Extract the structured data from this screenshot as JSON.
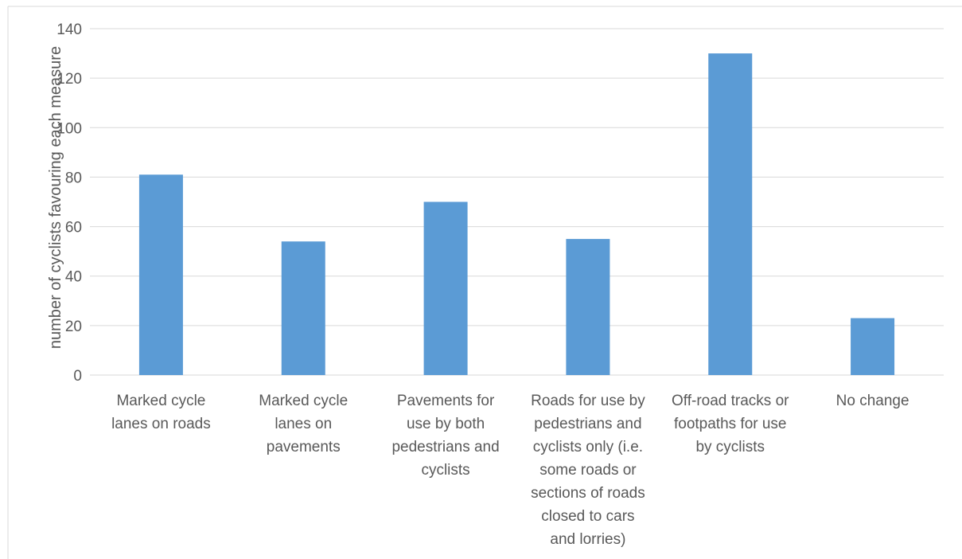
{
  "chart_data": {
    "type": "bar",
    "ylabel": "number of cyclists favouring each measure",
    "xlabel": "",
    "ylim": [
      0,
      140
    ],
    "yticks": [
      "0",
      "20",
      "40",
      "60",
      "80",
      "100",
      "120",
      "140"
    ],
    "grid": true,
    "categories": [
      [
        "Marked cycle",
        "lanes on roads"
      ],
      [
        "Marked cycle",
        "lanes on",
        "pavements"
      ],
      [
        "Pavements for",
        "use by both",
        "pedestrians and",
        "cyclists"
      ],
      [
        "Roads for use by",
        "pedestrians and",
        "cyclists only (i.e.",
        "some roads or",
        "sections of roads",
        "closed to cars",
        "and lorries)"
      ],
      [
        "Off-road tracks or",
        "footpaths for use",
        "by cyclists"
      ],
      [
        "No change"
      ]
    ],
    "values": [
      81,
      54,
      70,
      55,
      130,
      23
    ],
    "colors": {
      "bar": "#5b9bd5",
      "grid": "#d9d9d9",
      "text": "#595959"
    }
  }
}
